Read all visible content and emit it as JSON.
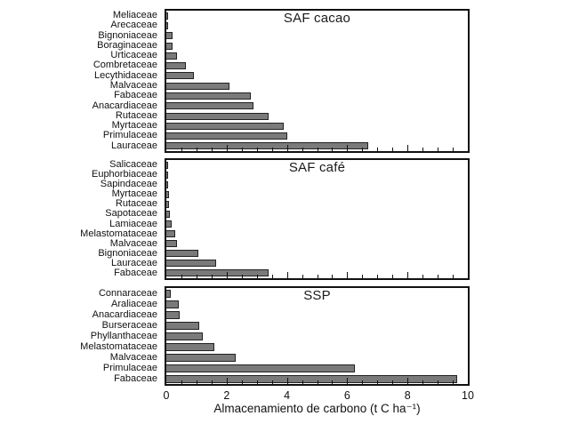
{
  "colors": {
    "bar_fill": "#7a7a7a",
    "bar_border": "#222222",
    "axis_color": "#111111",
    "background": "#ffffff"
  },
  "axis": {
    "xlabel": "Almacenamiento de carbono (t C ha⁻¹)",
    "xlim": [
      0,
      10
    ],
    "major_ticks": [
      0,
      2,
      4,
      6,
      8,
      10
    ],
    "tick_labels": [
      "0",
      "2",
      "4",
      "6",
      "8",
      "10"
    ],
    "minor_step": 0.5,
    "grid": false,
    "legend": "none"
  },
  "chart_data": [
    {
      "type": "bar",
      "orientation": "horizontal",
      "title": "SAF cacao",
      "categories": [
        "Meliaceae",
        "Arecaceae",
        "Bignoniaceae",
        "Boraginaceae",
        "Urticaceae",
        "Combretaceae",
        "Lecythidaceae",
        "Malvaceae",
        "Fabaceae",
        "Anacardiaceae",
        "Rutaceae",
        "Myrtaceae",
        "Primulaceae",
        "Lauraceae"
      ],
      "values": [
        0.05,
        0.05,
        0.2,
        0.2,
        0.35,
        0.65,
        0.9,
        2.1,
        2.8,
        2.9,
        3.4,
        3.9,
        4.0,
        6.7
      ],
      "xlim": [
        0,
        10
      ]
    },
    {
      "type": "bar",
      "orientation": "horizontal",
      "title": "SAF café",
      "categories": [
        "Salicaceae",
        "Euphorbiaceae",
        "Sapindaceae",
        "Myrtaceae",
        "Rutaceae",
        "Sapotaceae",
        "Lamiaceae",
        "Melastomataceae",
        "Malvaceae",
        "Bignoniaceae",
        "Lauraceae",
        "Fabaceae"
      ],
      "values": [
        0.02,
        0.05,
        0.05,
        0.08,
        0.1,
        0.12,
        0.18,
        0.3,
        0.35,
        1.05,
        1.65,
        3.4
      ],
      "xlim": [
        0,
        10
      ]
    },
    {
      "type": "bar",
      "orientation": "horizontal",
      "title": "SSP",
      "categories": [
        "Connaraceae",
        "Araliaceae",
        "Anacardiaceae",
        "Burseraceae",
        "Phyllanthaceae",
        "Melastomataceae",
        "Malvaceae",
        "Primulaceae",
        "Fabaceae"
      ],
      "values": [
        0.15,
        0.4,
        0.45,
        1.1,
        1.2,
        1.6,
        2.3,
        6.25,
        9.65
      ],
      "xlim": [
        0,
        10
      ]
    }
  ]
}
